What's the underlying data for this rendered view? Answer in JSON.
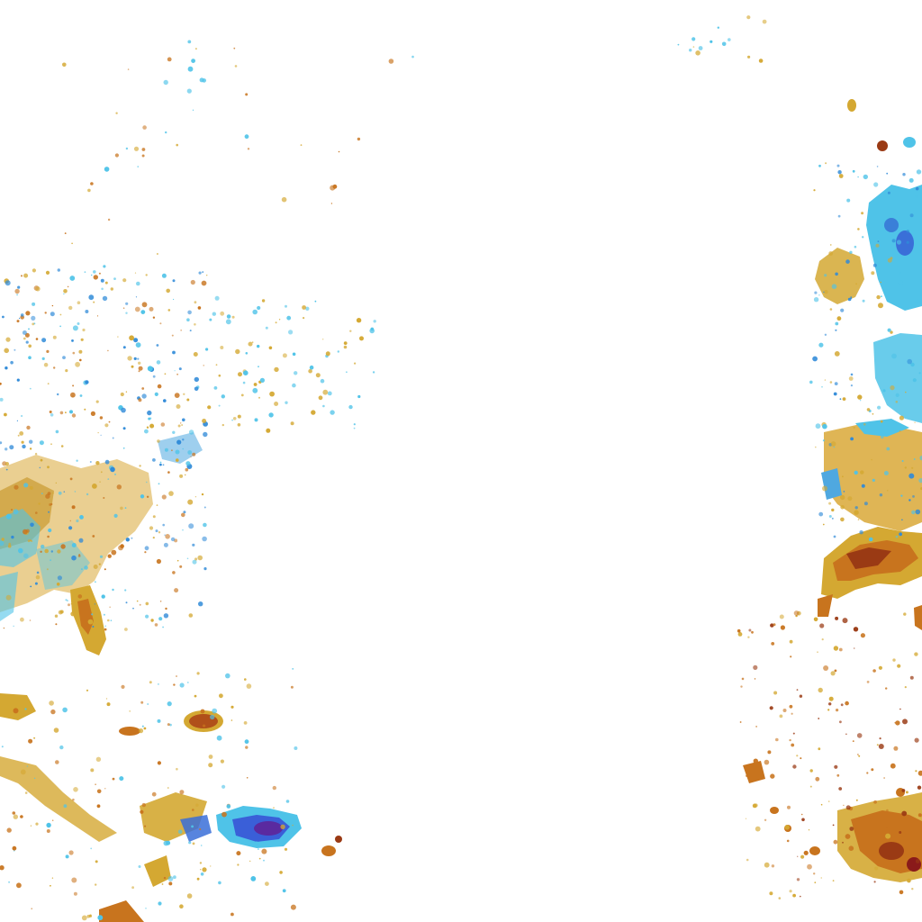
{
  "map": {
    "kind": "tile",
    "labels_visible": false,
    "palette": {
      "blue_light": "#4fc3e8",
      "blue_mid": "#2f8ad8",
      "blue_deep": "#3a3fd0",
      "purple": "#5a2aa0",
      "gold": "#d4a832",
      "orange": "#c8741e",
      "brown": "#9a3a14",
      "deep_red": "#8a1a1a"
    }
  }
}
